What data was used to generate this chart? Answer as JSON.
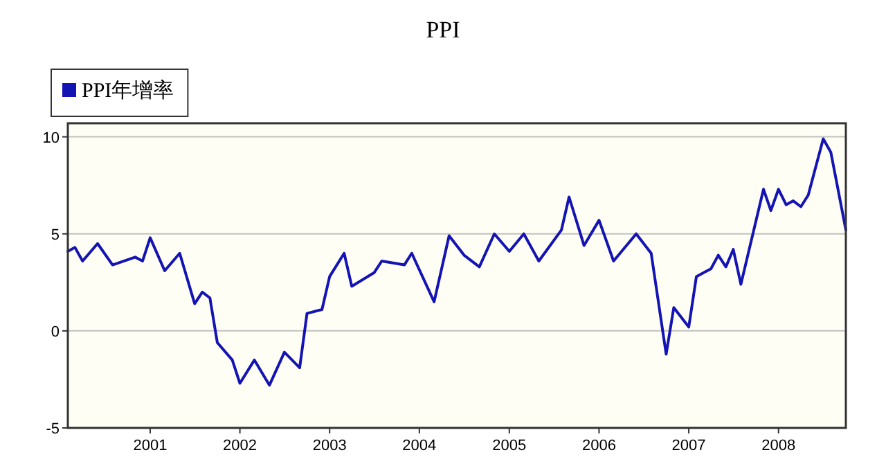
{
  "chart_data": {
    "type": "line",
    "title": "PPI",
    "legend": "top left",
    "grid": "y",
    "line_style": "solid",
    "x": [
      "2000-02",
      "2000-03",
      "2000-04",
      "2000-06",
      "2000-08",
      "2000-11",
      "2000-12",
      "2001-01",
      "2001-03",
      "2001-05",
      "2001-07",
      "2001-08",
      "2001-09",
      "2001-10",
      "2001-12",
      "2002-01",
      "2002-03",
      "2002-05",
      "2002-07",
      "2002-09",
      "2002-10",
      "2002-12",
      "2003-01",
      "2003-03",
      "2003-04",
      "2003-07",
      "2003-08",
      "2003-11",
      "2003-12",
      "2004-03",
      "2004-05",
      "2004-07",
      "2004-09",
      "2004-11",
      "2005-01",
      "2005-03",
      "2005-05",
      "2005-08",
      "2005-09",
      "2005-11",
      "2006-01",
      "2006-03",
      "2006-06",
      "2006-08",
      "2006-10",
      "2006-11",
      "2007-01",
      "2007-02",
      "2007-04",
      "2007-05",
      "2007-06",
      "2007-07",
      "2007-08",
      "2007-11",
      "2007-12",
      "2008-01",
      "2008-02",
      "2008-03",
      "2008-04",
      "2008-05",
      "2008-07",
      "2008-08",
      "2008-10"
    ],
    "series": [
      {
        "name": "PPI年增率",
        "color": "#1414b4",
        "values": [
          4.1,
          4.3,
          3.6,
          4.5,
          3.4,
          3.8,
          3.6,
          4.8,
          3.1,
          4.0,
          1.4,
          2.0,
          1.7,
          -0.6,
          -1.5,
          -2.7,
          -1.5,
          -2.8,
          -1.1,
          -1.9,
          0.9,
          1.1,
          2.8,
          4.0,
          2.3,
          3.0,
          3.6,
          3.4,
          4.0,
          1.5,
          4.9,
          3.9,
          3.3,
          5.0,
          4.1,
          5.0,
          3.6,
          5.2,
          6.9,
          4.4,
          5.7,
          3.6,
          5.0,
          4.0,
          -1.2,
          1.2,
          0.2,
          2.8,
          3.2,
          3.9,
          3.3,
          4.2,
          2.4,
          7.3,
          6.2,
          7.3,
          6.5,
          6.7,
          6.4,
          7.0,
          9.9,
          9.2,
          5.2
        ]
      }
    ],
    "xlim": [
      "2000-02",
      "2008-10"
    ],
    "xticks": [
      "2001",
      "2002",
      "2003",
      "2004",
      "2005",
      "2006",
      "2007",
      "2008"
    ],
    "ylim": [
      -5,
      10.7
    ],
    "yticks": [
      -5,
      0,
      5,
      10
    ]
  }
}
